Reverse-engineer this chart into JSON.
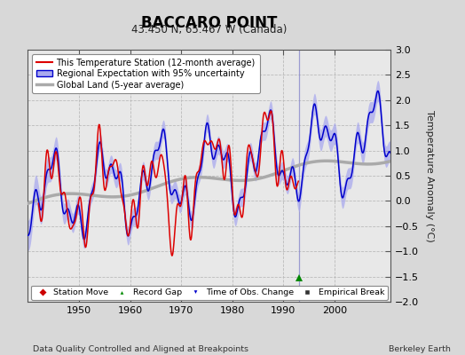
{
  "title": "BACCARO POINT",
  "subtitle": "43.450 N, 65.467 W (Canada)",
  "ylabel": "Temperature Anomaly (°C)",
  "footer_left": "Data Quality Controlled and Aligned at Breakpoints",
  "footer_right": "Berkeley Earth",
  "ylim": [
    -2,
    3
  ],
  "xlim": [
    1940,
    2011
  ],
  "yticks": [
    -2,
    -1.5,
    -1,
    -0.5,
    0,
    0.5,
    1,
    1.5,
    2,
    2.5,
    3
  ],
  "xticks": [
    1950,
    1960,
    1970,
    1980,
    1990,
    2000
  ],
  "bg_color": "#d8d8d8",
  "plot_bg_color": "#e8e8e8",
  "station_color": "#dd0000",
  "regional_color": "#0000cc",
  "regional_fill_color": "#aaaaee",
  "global_color": "#aaaaaa",
  "vertical_line_x": 1993,
  "vertical_line_color": "#8888cc",
  "marker_green_x": 1993,
  "marker_green_y": -1.52,
  "legend_labels": [
    "This Temperature Station (12-month average)",
    "Regional Expectation with 95% uncertainty",
    "Global Land (5-year average)"
  ],
  "bottom_legend": [
    {
      "label": "Station Move",
      "color": "#cc0000",
      "marker": "D"
    },
    {
      "label": "Record Gap",
      "color": "#008800",
      "marker": "^"
    },
    {
      "label": "Time of Obs. Change",
      "color": "#0000cc",
      "marker": "v"
    },
    {
      "label": "Empirical Break",
      "color": "#333333",
      "marker": "s"
    }
  ]
}
